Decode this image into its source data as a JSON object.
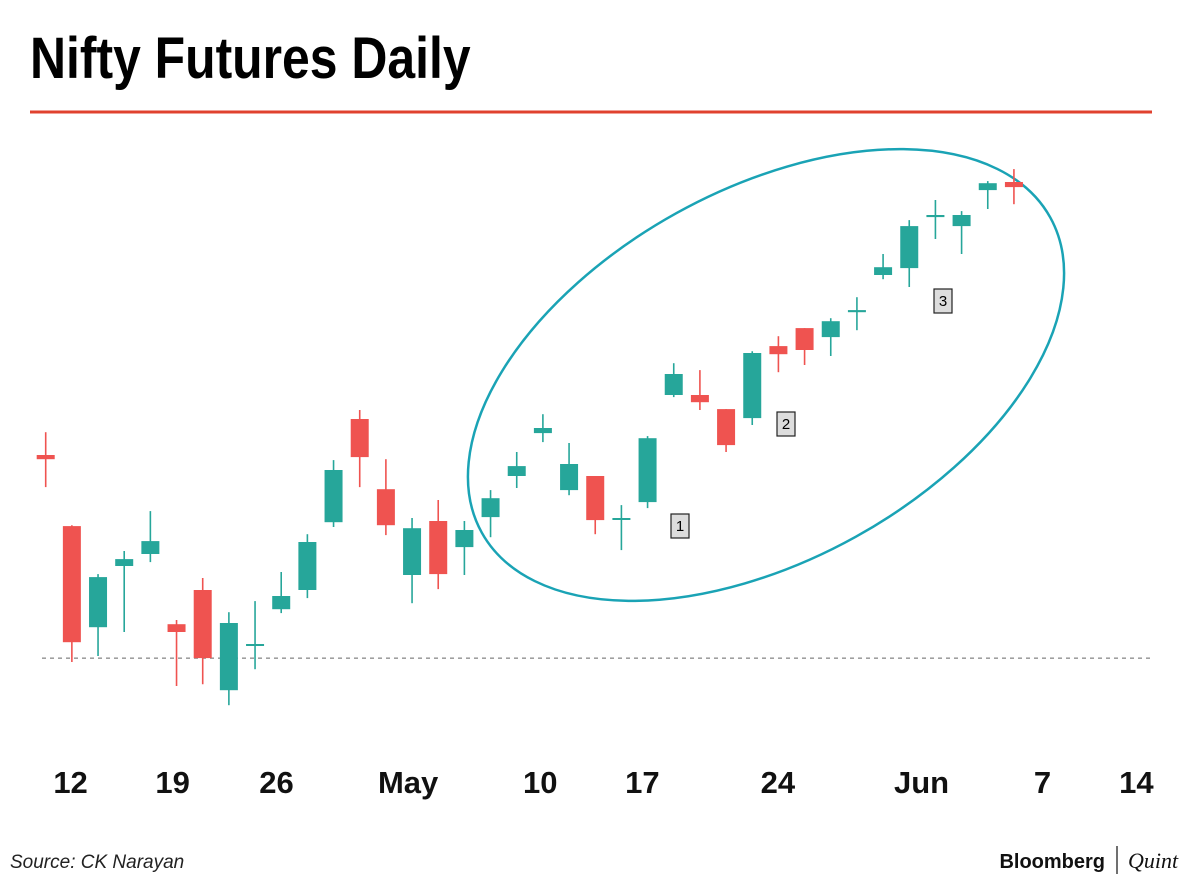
{
  "chart_data": {
    "type": "candlestick",
    "title": "Nifty Futures Daily",
    "source": "Source: CK Narayan",
    "brand": [
      "Bloomberg",
      "Quint"
    ],
    "annotations": [
      "1",
      "2",
      "3"
    ],
    "up_color": "#26a69a",
    "down_color": "#ef5350",
    "reference_line": 14300,
    "xlim": [
      -0.6,
      42.2
    ],
    "ylim": [
      14027,
      16027
    ],
    "xticks": [
      {
        "value": 0.95,
        "label": "12"
      },
      {
        "value": 4.85,
        "label": "19"
      },
      {
        "value": 8.82,
        "label": "26"
      },
      {
        "value": 13.85,
        "label": "May"
      },
      {
        "value": 18.9,
        "label": "10"
      },
      {
        "value": 22.8,
        "label": "17"
      },
      {
        "value": 27.98,
        "label": "24"
      },
      {
        "value": 33.47,
        "label": "Jun"
      },
      {
        "value": 38.09,
        "label": "7"
      },
      {
        "value": 41.68,
        "label": "14"
      }
    ],
    "open": [
      14977,
      14740,
      14403,
      14607,
      14647,
      14413,
      14527,
      14193,
      14343,
      14463,
      14527,
      14753,
      15097,
      14863,
      14577,
      14757,
      14670,
      14770,
      14907,
      15050,
      14860,
      14907,
      14763,
      14820,
      15177,
      15177,
      15130,
      15100,
      15340,
      15400,
      15370,
      15453,
      15577,
      15600,
      15770,
      15740,
      15860,
      15887
    ],
    "high": [
      15053,
      14743,
      14580,
      14657,
      14790,
      14427,
      14567,
      14453,
      14490,
      14587,
      14713,
      14960,
      15127,
      14963,
      14767,
      14827,
      14757,
      14860,
      14987,
      15113,
      15017,
      14907,
      14810,
      15040,
      15283,
      15260,
      15130,
      15323,
      15373,
      15400,
      15433,
      15503,
      15647,
      15760,
      15827,
      15790,
      15890,
      15930
    ],
    "low": [
      14870,
      14287,
      14307,
      14387,
      14620,
      14207,
      14213,
      14143,
      14263,
      14450,
      14500,
      14737,
      14870,
      14710,
      14483,
      14530,
      14577,
      14703,
      14867,
      15020,
      14843,
      14713,
      14660,
      14800,
      15170,
      15127,
      14987,
      15077,
      15253,
      15277,
      15307,
      15393,
      15563,
      15537,
      15697,
      15647,
      15797,
      15813
    ],
    "close": [
      14963,
      14353,
      14570,
      14630,
      14690,
      14387,
      14300,
      14417,
      14347,
      14507,
      14687,
      14927,
      14970,
      14743,
      14733,
      14580,
      14727,
      14833,
      14940,
      15067,
      14947,
      14760,
      14767,
      15033,
      15247,
      15153,
      15010,
      15317,
      15313,
      15327,
      15423,
      15460,
      15603,
      15740,
      15777,
      15777,
      15883,
      15870
    ]
  }
}
